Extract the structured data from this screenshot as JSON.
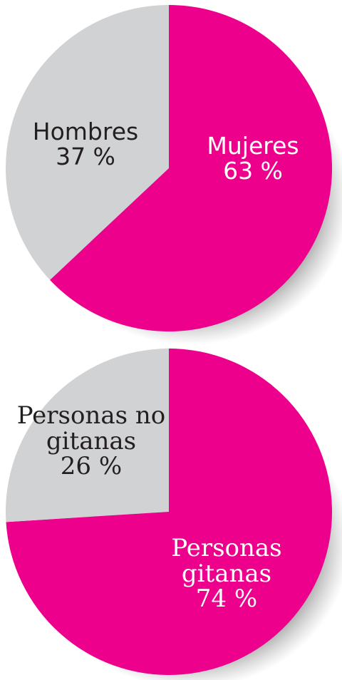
{
  "chart_data": [
    {
      "type": "pie",
      "categories": [
        "Mujeres",
        "Hombres"
      ],
      "values": [
        63,
        37
      ],
      "value_labels": [
        "63 %",
        "37 %"
      ],
      "colors": [
        "#ec008c",
        "#d1d2d4"
      ]
    },
    {
      "type": "pie",
      "categories": [
        "Personas gitanas",
        "Personas no gitanas"
      ],
      "values": [
        74,
        26
      ],
      "value_labels": [
        "74 %",
        "26 %"
      ],
      "colors": [
        "#ec008c",
        "#d1d2d4"
      ]
    }
  ]
}
